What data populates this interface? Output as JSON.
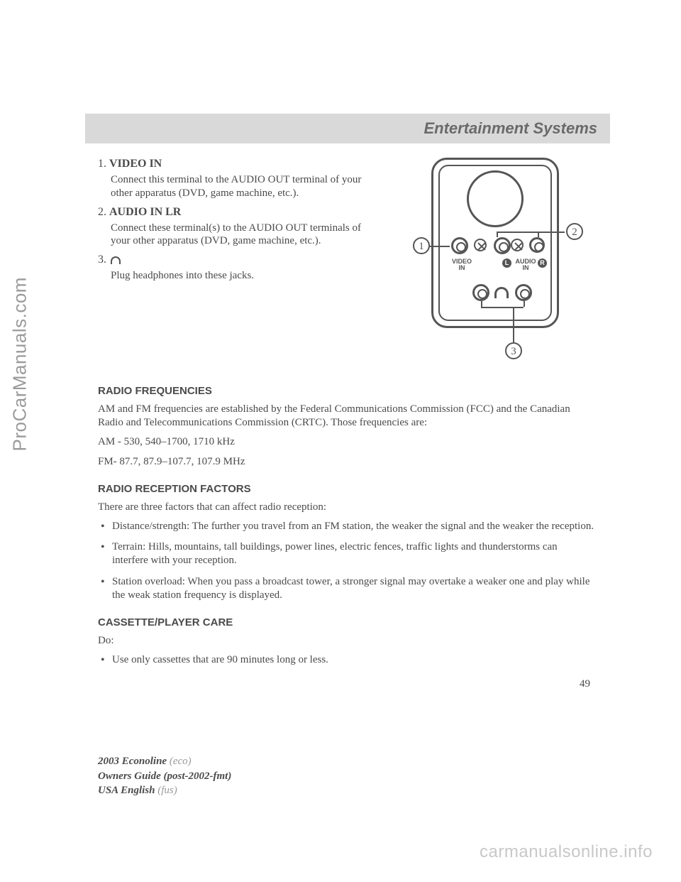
{
  "watermarks": {
    "left": "ProCarManuals.com",
    "bottom": "carmanualsonline.info"
  },
  "header": {
    "title": "Entertainment Systems"
  },
  "items": [
    {
      "num": "1.",
      "label": "VIDEO IN",
      "body": "Connect this terminal to the AUDIO OUT terminal of your other apparatus (DVD, game machine, etc.)."
    },
    {
      "num": "2.",
      "label": "AUDIO IN LR",
      "body": "Connect these terminal(s) to the AUDIO OUT terminals of your other apparatus (DVD, game machine, etc.)."
    },
    {
      "num": "3.",
      "label": "",
      "body": "Plug headphones into these jacks."
    }
  ],
  "diagram": {
    "callouts": {
      "c1": "1",
      "c2": "2",
      "c3": "3"
    },
    "labels": {
      "video": "VIDEO IN",
      "audio": "AUDIO IN",
      "L": "L",
      "R": "R"
    }
  },
  "sections": {
    "radio_freq_h": "RADIO FREQUENCIES",
    "radio_freq_p1": "AM and FM frequencies are established by the Federal Communications Commission (FCC) and the Canadian Radio and Telecommunications Commission (CRTC). Those frequencies are:",
    "radio_freq_p2": "AM - 530, 540–1700, 1710 kHz",
    "radio_freq_p3": "FM- 87.7, 87.9–107.7, 107.9 MHz",
    "recep_h": "RADIO RECEPTION FACTORS",
    "recep_intro": "There are three factors that can affect radio reception:",
    "recep_bullets": [
      "Distance/strength: The further you travel from an FM station, the weaker the signal and the weaker the reception.",
      "Terrain: Hills, mountains, tall buildings, power lines, electric fences, traffic lights and thunderstorms can interfere with your reception.",
      "Station overload: When you pass a broadcast tower, a stronger signal may overtake a weaker one and play while the weak station frequency is displayed."
    ],
    "cassette_h": "CASSETTE/PLAYER CARE",
    "cassette_do": "Do:",
    "cassette_bullets": [
      "Use only cassettes that are 90 minutes long or less."
    ]
  },
  "page_num": "49",
  "footer": {
    "l1a": "2003 Econoline ",
    "l1b": "(eco)",
    "l2a": "Owners Guide (post-2002-fmt)",
    "l3a": "USA English ",
    "l3b": "(fus)"
  }
}
